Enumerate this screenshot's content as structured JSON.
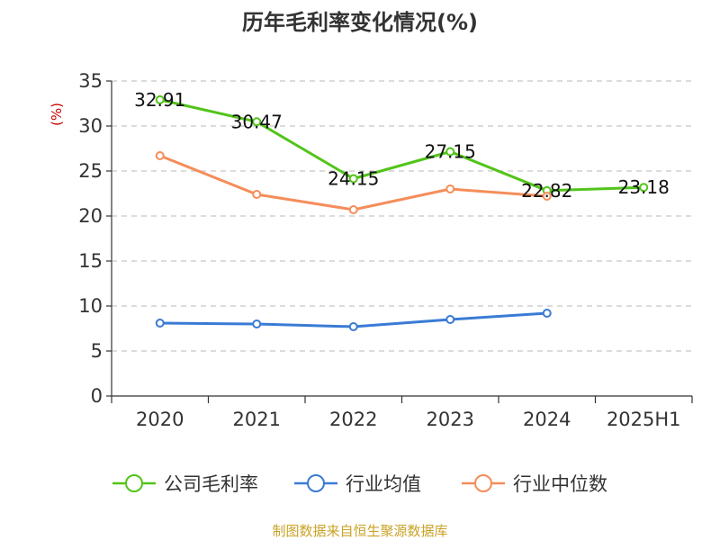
{
  "chart_data": {
    "type": "line",
    "title": "历年毛利率变化情况(%)",
    "ylabel": "(%)",
    "xlabel": "",
    "categories": [
      "2020",
      "2021",
      "2022",
      "2023",
      "2024",
      "2025H1"
    ],
    "ylim": [
      0,
      35
    ],
    "yticks": [
      0,
      5,
      10,
      15,
      20,
      25,
      30,
      35
    ],
    "grid": true,
    "legend_position": "bottom",
    "series": [
      {
        "name": "公司毛利率",
        "color": "#52c41a",
        "values": [
          32.91,
          30.47,
          24.15,
          27.15,
          22.82,
          23.18
        ],
        "labels": [
          "32.91",
          "30.47",
          "24.15",
          "27.15",
          "22.82",
          "23.18"
        ]
      },
      {
        "name": "行业均值",
        "color": "#3a7bd5",
        "values": [
          8.1,
          8.0,
          7.7,
          8.5,
          9.2,
          null
        ]
      },
      {
        "name": "行业中位数",
        "color": "#f58d5a",
        "values": [
          26.7,
          22.4,
          20.7,
          23.0,
          22.2,
          null
        ]
      }
    ],
    "source": "制图数据来自恒生聚源数据库"
  }
}
